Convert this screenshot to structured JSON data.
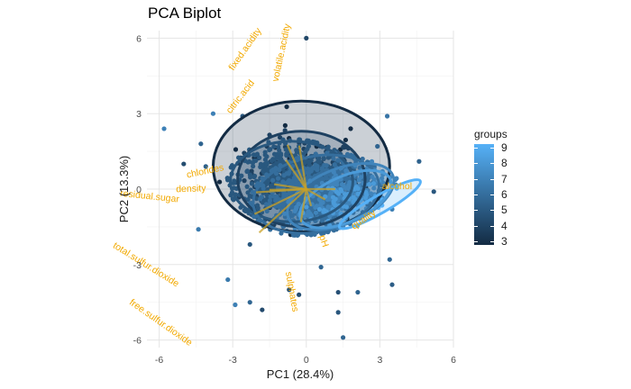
{
  "chart_data": {
    "type": "scatter",
    "title": "PCA Biplot",
    "xlabel": "PC1 (28.4%)",
    "ylabel": "PC2 (13.3%)",
    "xlim": [
      -6.5,
      6.0
    ],
    "ylim": [
      -6.3,
      6.3
    ],
    "x_ticks": [
      -6,
      -3,
      0,
      3,
      6
    ],
    "y_ticks": [
      -6,
      -3,
      0,
      3,
      6
    ],
    "grid": true,
    "legend": {
      "title": "groups",
      "labels": [
        "9",
        "8",
        "7",
        "6",
        "5",
        "4",
        "3"
      ],
      "low_color": "#132B43",
      "high_color": "#56B1F7",
      "placement": "right"
    },
    "groups": [
      {
        "value": 3,
        "center": [
          -0.2,
          0.9
        ],
        "rx": 3.6,
        "ry": 2.6,
        "angle": 0,
        "n_points": 30
      },
      {
        "value": 4,
        "center": [
          -0.2,
          0.4
        ],
        "rx": 2.6,
        "ry": 1.9,
        "angle": 0,
        "n_points": 160
      },
      {
        "value": 5,
        "center": [
          -0.6,
          0.3
        ],
        "rx": 2.5,
        "ry": 1.6,
        "angle": 0,
        "n_points": 680
      },
      {
        "value": 6,
        "center": [
          0.4,
          -0.2
        ],
        "rx": 2.6,
        "ry": 1.5,
        "angle": -12,
        "n_points": 640
      },
      {
        "value": 7,
        "center": [
          1.4,
          -0.3
        ],
        "rx": 2.3,
        "ry": 1.1,
        "angle": -22,
        "n_points": 200
      },
      {
        "value": 8,
        "center": [
          1.6,
          -0.4
        ],
        "rx": 2.0,
        "ry": 0.9,
        "angle": -24,
        "n_points": 60
      },
      {
        "value": 9,
        "center": [
          3.0,
          -0.6
        ],
        "rx": 1.9,
        "ry": 0.35,
        "angle": -30,
        "n_points": 8
      }
    ],
    "outliers": [
      [
        0,
        6.0
      ],
      [
        -5.8,
        2.4
      ],
      [
        -3.8,
        3.0
      ],
      [
        -2.6,
        2.9
      ],
      [
        -4.1,
        0.9
      ],
      [
        -4.3,
        1.8
      ],
      [
        -4.4,
        -1.6
      ],
      [
        -3.2,
        -3.6
      ],
      [
        -2.9,
        -4.6
      ],
      [
        -2.3,
        -4.5
      ],
      [
        -1.8,
        -4.8
      ],
      [
        -0.3,
        -4.2
      ],
      [
        1.5,
        -5.9
      ],
      [
        1.3,
        -4.9
      ],
      [
        2.1,
        -4.1
      ],
      [
        3.4,
        -2.8
      ],
      [
        3.5,
        -3.8
      ],
      [
        5.2,
        -0.1
      ],
      [
        4.6,
        1.1
      ],
      [
        3.3,
        2.9
      ],
      [
        2.9,
        1.7
      ],
      [
        -5.0,
        1.0
      ],
      [
        -2.3,
        -2.2
      ],
      [
        -0.7,
        -4.0
      ],
      [
        0.6,
        -3.1
      ],
      [
        1.3,
        -4.1
      ],
      [
        3.5,
        -0.8
      ]
    ],
    "loadings": [
      {
        "label": "fixed.acidity",
        "end": [
          -2.4,
          5.5
        ],
        "angle": 55
      },
      {
        "label": "volatile.acidity",
        "end": [
          -0.9,
          5.4
        ],
        "angle": 78
      },
      {
        "label": "citric.acid",
        "end": [
          -2.6,
          3.6
        ],
        "angle": 52
      },
      {
        "label": "chlorides",
        "end": [
          -4.1,
          0.6
        ],
        "angle": 12
      },
      {
        "label": "density",
        "end": [
          -4.7,
          -0.1
        ],
        "angle": 2
      },
      {
        "label": "residual.sugar",
        "end": [
          -6.4,
          -0.4
        ],
        "angle": -6
      },
      {
        "label": "total.sulfur.dioxide",
        "end": [
          -6.6,
          -3.1
        ],
        "angle": -32
      },
      {
        "label": "free.sulfur.dioxide",
        "end": [
          -6.0,
          -5.4
        ],
        "angle": -35
      },
      {
        "label": "sulphates",
        "end": [
          -0.7,
          -4.1
        ],
        "angle": -80
      },
      {
        "label": "pH",
        "end": [
          0.6,
          -2.1
        ],
        "angle": -72
      },
      {
        "label": "quality",
        "end": [
          2.4,
          -1.3
        ],
        "angle": 35
      },
      {
        "label": "alcohol",
        "end": [
          3.7,
          0.0
        ],
        "angle": 0
      }
    ]
  }
}
